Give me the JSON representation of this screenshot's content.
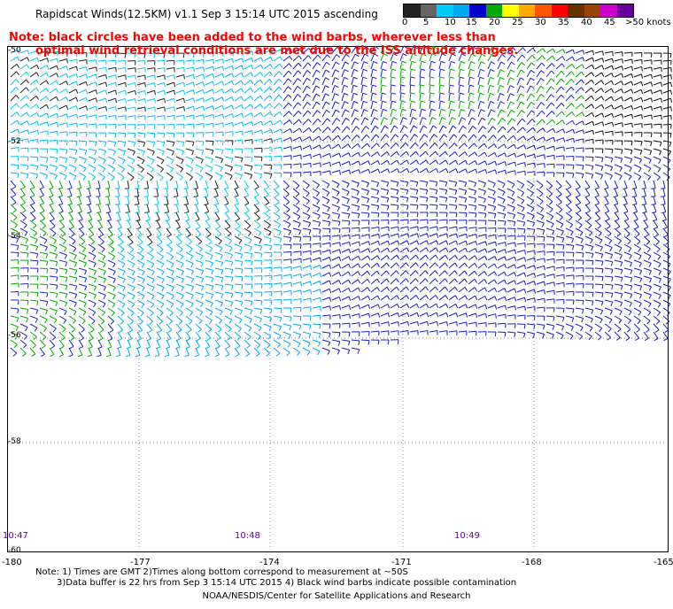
{
  "title": "Rapidscat Winds(12.5KM) v1.1 Sep  3 15:14 UTC 2015 ascending",
  "legend": {
    "colors": [
      "#222222",
      "#666666",
      "#00ccff",
      "#00aaee",
      "#0000cc",
      "#00aa00",
      "#ffff00",
      "#ffaa00",
      "#ff5500",
      "#ff0000",
      "#663300",
      "#994400",
      "#cc00cc",
      "#660099"
    ],
    "labels": [
      "0",
      "5",
      "10",
      "15",
      "20",
      "25",
      "30",
      "35",
      "40",
      "45",
      ">50 knots"
    ]
  },
  "note_line1": "Note: black circles have been added to the wind barbs, wherever less than",
  "note_line2": "optimal wind retrieval conditions are met due to the ISS altitude changes.",
  "lat_labels": [
    "-50",
    "-52",
    "-54",
    "-56",
    "-58",
    "-60"
  ],
  "lon_labels": [
    "-180",
    "-177",
    "-174",
    "-171",
    "-168",
    "-165"
  ],
  "time_labels": [
    "10:47",
    "10:48",
    "10:49"
  ],
  "footnote_line1": "Note: 1) Times are GMT 2)Times along bottom correspond to measurement at ~50S",
  "footnote_line2": "3)Data buffer is 22 hrs from Sep  3 15:14 UTC 2015 4) Black wind barbs indicate possible contamination",
  "credit": "NOAA/NESDIS/Center for Satellite Applications and Research"
}
